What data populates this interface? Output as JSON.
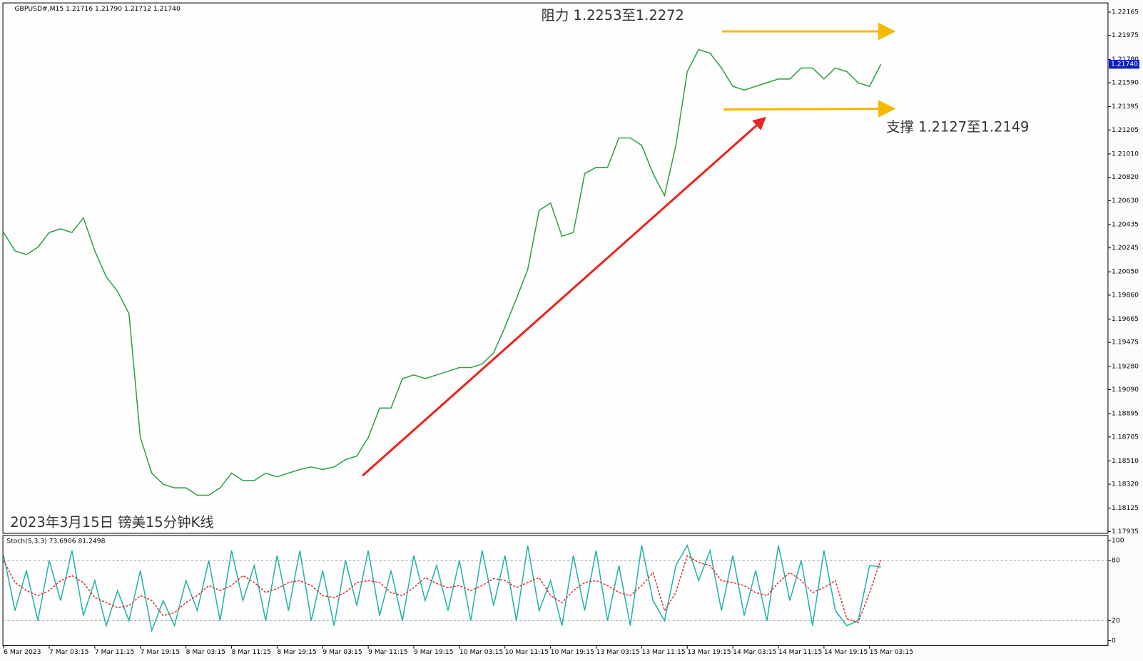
{
  "chart_data": [
    {
      "type": "line",
      "title": "GBPUSD#,M15  1.21716 1.21790 1.21712 1.21740",
      "annotations": [
        "阻力 1.2253至1.2272",
        "支撑 1.2127至1.2149",
        "2023年3月15日 镑美15分钟K线"
      ],
      "categories": [
        "6 Mar 2023",
        null,
        null,
        null,
        "7 Mar 03:15",
        null,
        null,
        null,
        "7 Mar 11:15",
        null,
        null,
        null,
        "7 Mar 19:15",
        null,
        null,
        null,
        "8 Mar 03:15",
        null,
        null,
        null,
        "8 Mar 11:15",
        null,
        null,
        null,
        "8 Mar 19:15",
        null,
        null,
        null,
        "9 Mar 03:15",
        null,
        null,
        null,
        "9 Mar 11:15",
        null,
        null,
        null,
        "9 Mar 19:15",
        null,
        null,
        null,
        "10 Mar 03:15",
        null,
        null,
        null,
        "10 Mar 11:15",
        null,
        null,
        null,
        "10 Mar 19:15",
        null,
        null,
        null,
        "13 Mar 03:15",
        null,
        null,
        null,
        "13 Mar 11:15",
        null,
        null,
        null,
        "13 Mar 19:15",
        null,
        null,
        null,
        "14 Mar 03:15",
        null,
        null,
        null,
        "14 Mar 11:15",
        null,
        null,
        null,
        "14 Mar 19:15",
        null,
        null,
        null,
        "15 Mar 03:15",
        null
      ],
      "series": [
        {
          "name": "GBPUSD#",
          "color": "#2ea043",
          "values": [
            1.2037,
            1.2022,
            1.2019,
            1.2025,
            1.2037,
            1.204,
            1.2037,
            1.2049,
            1.2022,
            1.2001,
            1.1989,
            1.1971,
            1.187,
            1.1841,
            1.1832,
            1.1829,
            1.1829,
            1.1823,
            1.1823,
            1.1829,
            1.1841,
            1.1835,
            1.1835,
            1.1841,
            1.1838,
            1.1841,
            1.1844,
            1.1846,
            1.1844,
            1.1846,
            1.1852,
            1.1855,
            1.187,
            1.1894,
            1.1894,
            1.1918,
            1.1921,
            1.1918,
            1.1921,
            1.1924,
            1.1927,
            1.1927,
            1.193,
            1.1939,
            1.196,
            1.1983,
            1.2007,
            1.2055,
            1.2061,
            1.2034,
            1.2037,
            1.2085,
            1.209,
            1.209,
            1.2114,
            1.2114,
            1.2108,
            1.2085,
            1.2067,
            1.2108,
            1.2168,
            1.2186,
            1.2183,
            1.2171,
            1.2156,
            1.2153,
            1.2156,
            1.2159,
            1.2162,
            1.2162,
            1.2171,
            1.2171,
            1.2162,
            1.2171,
            1.2168,
            1.2159,
            1.2156,
            1.2174
          ]
        }
      ],
      "current_price": {
        "value": 1.2174,
        "label": "1.21740"
      },
      "ylim": [
        1.1792,
        1.2224
      ],
      "yticks": [
        {
          "value": 1.22165,
          "label": "1.22165"
        },
        {
          "value": 1.21975,
          "label": "1.21975"
        },
        {
          "value": 1.2178,
          "label": "1.21780"
        },
        {
          "value": 1.2159,
          "label": "1.21590"
        },
        {
          "value": 1.21395,
          "label": "1.21395"
        },
        {
          "value": 1.21205,
          "label": "1.21205"
        },
        {
          "value": 1.2101,
          "label": "1.21010"
        },
        {
          "value": 1.2082,
          "label": "1.20820"
        },
        {
          "value": 1.2063,
          "label": "1.20630"
        },
        {
          "value": 1.20435,
          "label": "1.20435"
        },
        {
          "value": 1.20245,
          "label": "1.20245"
        },
        {
          "value": 1.2005,
          "label": "1.20050"
        },
        {
          "value": 1.1986,
          "label": "1.19860"
        },
        {
          "value": 1.19665,
          "label": "1.19665"
        },
        {
          "value": 1.19475,
          "label": "1.19475"
        },
        {
          "value": 1.1928,
          "label": "1.19280"
        },
        {
          "value": 1.1909,
          "label": "1.19090"
        },
        {
          "value": 1.18895,
          "label": "1.18895"
        },
        {
          "value": 1.18705,
          "label": "1.18705"
        },
        {
          "value": 1.1851,
          "label": "1.18510"
        },
        {
          "value": 1.1832,
          "label": "1.18320"
        },
        {
          "value": 1.18125,
          "label": "1.18125"
        },
        {
          "value": 1.17935,
          "label": "1.17935"
        }
      ]
    },
    {
      "type": "line",
      "title": "Stoch(5,3,3) 73.6906 81.2498",
      "series": [
        {
          "name": "%K",
          "color": "#20b2aa",
          "values": [
            85,
            30,
            70,
            20,
            80,
            40,
            90,
            25,
            60,
            15,
            50,
            20,
            70,
            10,
            40,
            15,
            60,
            30,
            80,
            20,
            90,
            40,
            75,
            20,
            85,
            30,
            90,
            20,
            70,
            15,
            80,
            35,
            90,
            25,
            70,
            20,
            85,
            40,
            75,
            30,
            80,
            20,
            90,
            35,
            85,
            20,
            95,
            30,
            60,
            15,
            85,
            30,
            90,
            20,
            75,
            15,
            95,
            40,
            20,
            75,
            95,
            60,
            90,
            30,
            85,
            25,
            70,
            20,
            95,
            40,
            80,
            15,
            90,
            30,
            15,
            20,
            75,
            73.69
          ]
        },
        {
          "name": "%D",
          "color": "#e03030",
          "values": [
            80,
            58,
            50,
            45,
            50,
            60,
            65,
            58,
            43,
            38,
            33,
            35,
            45,
            40,
            25,
            28,
            38,
            45,
            55,
            50,
            55,
            65,
            58,
            48,
            52,
            58,
            60,
            55,
            45,
            43,
            48,
            58,
            60,
            58,
            48,
            45,
            53,
            63,
            57,
            53,
            55,
            50,
            55,
            62,
            60,
            53,
            58,
            63,
            45,
            38,
            50,
            58,
            60,
            55,
            48,
            45,
            55,
            68,
            30,
            48,
            85,
            78,
            75,
            60,
            58,
            55,
            48,
            45,
            58,
            68,
            60,
            48,
            53,
            60,
            22,
            18,
            48,
            81.25
          ]
        }
      ],
      "levels": [
        80,
        20
      ],
      "ylim": [
        -5,
        105
      ],
      "yticks": [
        100,
        80,
        20,
        0
      ]
    }
  ]
}
